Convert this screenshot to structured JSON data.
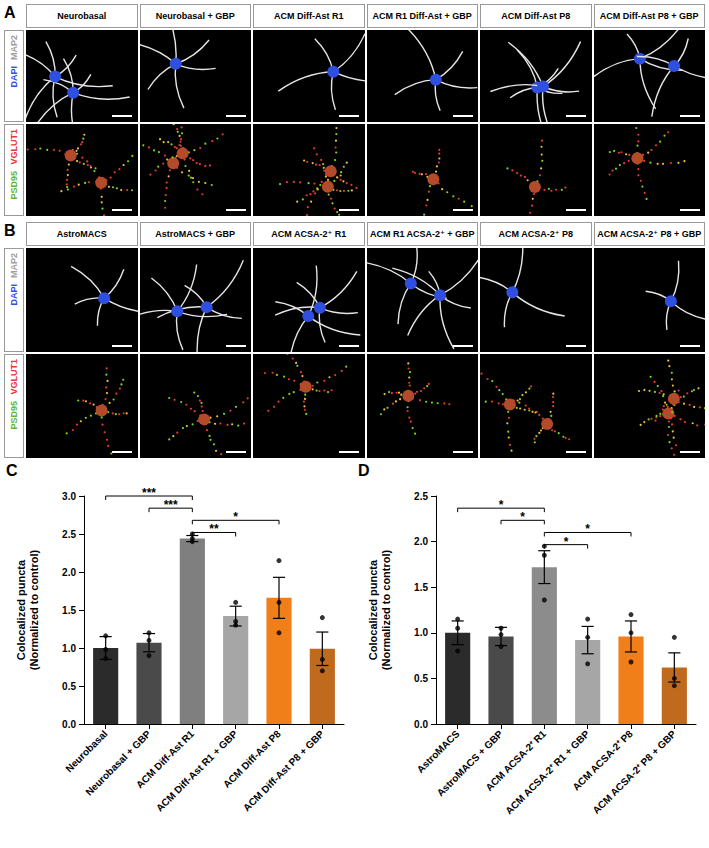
{
  "image_panels": [
    {
      "letter": "A",
      "columns": [
        "Neurobasal",
        "Neurobasal + GBP",
        "ACM Diff-Ast R1",
        "ACM R1 Diff-Ast + GBP",
        "ACM Diff-Ast P8",
        "ACM Diff-Ast P8 + GBP"
      ],
      "rows": [
        {
          "labels": [
            {
              "text": "MAP2",
              "color": "#9e9e9e"
            },
            {
              "text": "DAPI",
              "color": "#2f4fe0"
            }
          ]
        },
        {
          "labels": [
            {
              "text": "VGLUT1",
              "color": "#e53935"
            },
            {
              "text": "PSD95",
              "color": "#5cb82a"
            }
          ]
        }
      ]
    },
    {
      "letter": "B",
      "columns": [
        "AstroMACS",
        "AstroMACS + GBP",
        "ACM ACSA-2⁺ R1",
        "ACM R1 ACSA-2⁺ + GBP",
        "ACM ACSA-2⁺ P8",
        "ACM ACSA-2⁺ P8 + GBP"
      ],
      "rows": [
        {
          "labels": [
            {
              "text": "MAP2",
              "color": "#9e9e9e"
            },
            {
              "text": "DAPI",
              "color": "#2f4fe0"
            }
          ]
        },
        {
          "labels": [
            {
              "text": "VGLUT1",
              "color": "#e53935"
            },
            {
              "text": "PSD95",
              "color": "#5cb82a"
            }
          ]
        }
      ]
    }
  ],
  "chart_data": [
    {
      "letter": "C",
      "type": "bar",
      "categories": [
        "Neurobasal",
        "Neurobasal + GBP",
        "ACM Diff-Ast R1",
        "ACM Diff-Ast R1 + GBP",
        "ACM Diff-Ast P8",
        "ACM Diff-Ast P8 + GBP"
      ],
      "values": [
        1.0,
        1.07,
        2.44,
        1.42,
        1.66,
        0.99
      ],
      "errors": [
        0.15,
        0.12,
        0.04,
        0.13,
        0.27,
        0.22
      ],
      "points": [
        [
          1.16,
          0.98,
          0.86
        ],
        [
          1.2,
          1.1,
          0.9
        ],
        [
          2.5,
          2.44,
          2.4
        ],
        [
          1.6,
          1.35,
          1.3
        ],
        [
          2.15,
          1.6,
          1.2
        ],
        [
          1.4,
          0.85,
          0.7
        ]
      ],
      "colors": [
        "#2b2b2b",
        "#4a4a4a",
        "#7f7f7f",
        "#a6a6a6",
        "#f07f1a",
        "#c06a1e"
      ],
      "y_label": "Colocalized puncta\n(Normalized to control)",
      "ylim": [
        0,
        3
      ],
      "yticks": [
        {
          "value": 0,
          "label": "0.0"
        },
        {
          "value": 0.5,
          "label": "0.5"
        },
        {
          "value": 1,
          "label": "1.0"
        },
        {
          "value": 1.5,
          "label": "1.5"
        },
        {
          "value": 2,
          "label": "2.0"
        },
        {
          "value": 2.5,
          "label": "2.5"
        },
        {
          "value": 3,
          "label": "3.0"
        }
      ],
      "grid": false,
      "annotations": [
        {
          "from": "ACM Diff-Ast R1",
          "to": "ACM Diff-Ast R1 + GBP",
          "label": "**"
        },
        {
          "from": "ACM Diff-Ast R1",
          "to": "ACM Diff-Ast P8",
          "label": "*"
        },
        {
          "from": "Neurobasal + GBP",
          "to": "ACM Diff-Ast R1",
          "label": "***"
        },
        {
          "from": "Neurobasal",
          "to": "ACM Diff-Ast R1",
          "label": "***"
        }
      ]
    },
    {
      "letter": "D",
      "type": "bar",
      "categories": [
        "AstroMACS",
        "AstroMACS + GBP",
        "ACM ACSA-2⁺ R1",
        "ACM ACSA-2⁺ R1 + GBP",
        "ACM ACSA-2⁺ P8",
        "ACM ACSA-2⁺ P8 + GBP"
      ],
      "values": [
        1.0,
        0.96,
        1.72,
        0.92,
        0.96,
        0.62
      ],
      "errors": [
        0.13,
        0.1,
        0.18,
        0.15,
        0.17,
        0.16
      ],
      "points": [
        [
          1.15,
          1.05,
          0.8
        ],
        [
          1.05,
          0.98,
          0.85
        ],
        [
          1.95,
          1.85,
          1.36
        ],
        [
          1.15,
          0.95,
          0.66
        ],
        [
          1.2,
          1.0,
          0.68
        ],
        [
          0.95,
          0.5,
          0.42
        ]
      ],
      "colors": [
        "#2b2b2b",
        "#4a4a4a",
        "#8c8c8c",
        "#a6a6a6",
        "#f07f1a",
        "#c06a1e"
      ],
      "y_label": "Colocalized puncta\n(Normalized to control)",
      "ylim": [
        0,
        2.5
      ],
      "yticks": [
        {
          "value": 0,
          "label": "0.0"
        },
        {
          "value": 0.5,
          "label": "0.5"
        },
        {
          "value": 1,
          "label": "1.0"
        },
        {
          "value": 1.5,
          "label": "1.5"
        },
        {
          "value": 2,
          "label": "2.0"
        },
        {
          "value": 2.5,
          "label": "2.5"
        }
      ],
      "grid": false,
      "annotations": [
        {
          "from": "ACM ACSA-2⁺ R1",
          "to": "ACM ACSA-2⁺ R1 + GBP",
          "label": "*"
        },
        {
          "from": "ACM ACSA-2⁺ R1",
          "to": "ACM ACSA-2⁺ P8",
          "label": "*"
        },
        {
          "from": "AstroMACS + GBP",
          "to": "ACM ACSA-2⁺ R1",
          "label": "*"
        },
        {
          "from": "AstroMACS",
          "to": "ACM ACSA-2⁺ R1",
          "label": "*"
        }
      ]
    }
  ]
}
